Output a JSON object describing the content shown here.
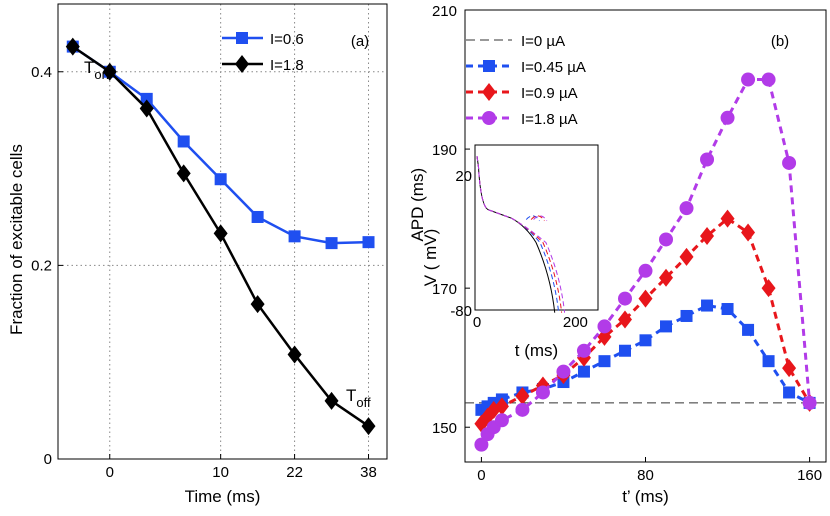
{
  "chart_data": [
    {
      "type": "line",
      "panel_label": "(a)",
      "xlabel": "Time (ms)",
      "ylabel": "Fraction of excitable cells",
      "x_tick_labels": [
        "0",
        "10",
        "22",
        "38"
      ],
      "y_tick_labels": [
        "0",
        "0.2",
        "0.4"
      ],
      "ylim": [
        0,
        0.47
      ],
      "grid": true,
      "legend_position": "top-right",
      "x_index": [
        -1,
        0,
        1,
        2,
        3,
        4,
        5,
        6,
        7
      ],
      "series": [
        {
          "name": "I=0.6",
          "color": "#1f4ff0",
          "marker": "square",
          "values": [
            0.426,
            0.4,
            0.372,
            0.328,
            0.289,
            0.25,
            0.23,
            0.223,
            0.224
          ]
        },
        {
          "name": "I=1.8",
          "color": "#000000",
          "marker": "diamond",
          "values": [
            0.426,
            0.4,
            0.362,
            0.295,
            0.233,
            0.16,
            0.108,
            0.06,
            0.034
          ]
        }
      ],
      "annotations": [
        {
          "text": "T",
          "sub": "on"
        },
        {
          "text": "T",
          "sub": "off"
        }
      ]
    },
    {
      "type": "line",
      "panel_label": "(b)",
      "xlabel": "t’ (ms)",
      "ylabel": "APD (ms)",
      "x_tick_labels": [
        "0",
        "80",
        "160"
      ],
      "y_tick_labels": [
        "150",
        "170",
        "190",
        "210"
      ],
      "xlim": [
        -8,
        168
      ],
      "ylim": [
        145,
        210
      ],
      "legend_position": "top-left",
      "series": [
        {
          "name": "I=0 µA",
          "color": "#333333",
          "marker": "none",
          "style": "dashed",
          "x": [
            -8,
            168
          ],
          "values": [
            153.5,
            153.5
          ]
        },
        {
          "name": "I=0.45 µA",
          "color": "#1f4ff0",
          "marker": "square",
          "style": "dashed",
          "x": [
            0,
            3,
            6,
            10,
            20,
            30,
            40,
            50,
            60,
            70,
            80,
            90,
            100,
            110,
            120,
            130,
            140,
            150,
            160
          ],
          "values": [
            152.5,
            153.0,
            153.5,
            154.0,
            155.0,
            155.5,
            156.5,
            158.0,
            159.5,
            161.0,
            162.5,
            164.5,
            166.0,
            167.5,
            167.0,
            164.0,
            159.5,
            155.0,
            153.5
          ]
        },
        {
          "name": "I=0.9 µA",
          "color": "#e8161b",
          "marker": "diamond",
          "style": "dashed",
          "x": [
            0,
            3,
            6,
            10,
            20,
            30,
            40,
            50,
            60,
            70,
            80,
            90,
            100,
            110,
            120,
            130,
            140,
            150,
            160
          ],
          "values": [
            150.5,
            151.5,
            152.5,
            153.0,
            154.5,
            156.0,
            157.5,
            160.0,
            163.0,
            165.5,
            168.5,
            171.5,
            174.5,
            177.5,
            180.0,
            178.0,
            170.0,
            158.5,
            153.5
          ]
        },
        {
          "name": "I=1.8 µA",
          "color": "#b23be8",
          "marker": "circle",
          "style": "dashed",
          "x": [
            0,
            3,
            6,
            10,
            20,
            30,
            40,
            50,
            60,
            70,
            80,
            90,
            100,
            110,
            120,
            130,
            140,
            150,
            160
          ],
          "values": [
            147.5,
            149.0,
            150.0,
            151.0,
            152.5,
            155.0,
            158.0,
            161.0,
            164.5,
            168.5,
            172.5,
            177.0,
            181.5,
            188.5,
            194.5,
            200.0,
            200.0,
            188.0,
            153.5
          ]
        }
      ],
      "inset": {
        "xlabel": "t (ms)",
        "ylabel": "V ( mV)",
        "x_tick_labels": [
          "0",
          "200"
        ],
        "y_tick_labels": [
          "20",
          "-80"
        ]
      }
    }
  ]
}
